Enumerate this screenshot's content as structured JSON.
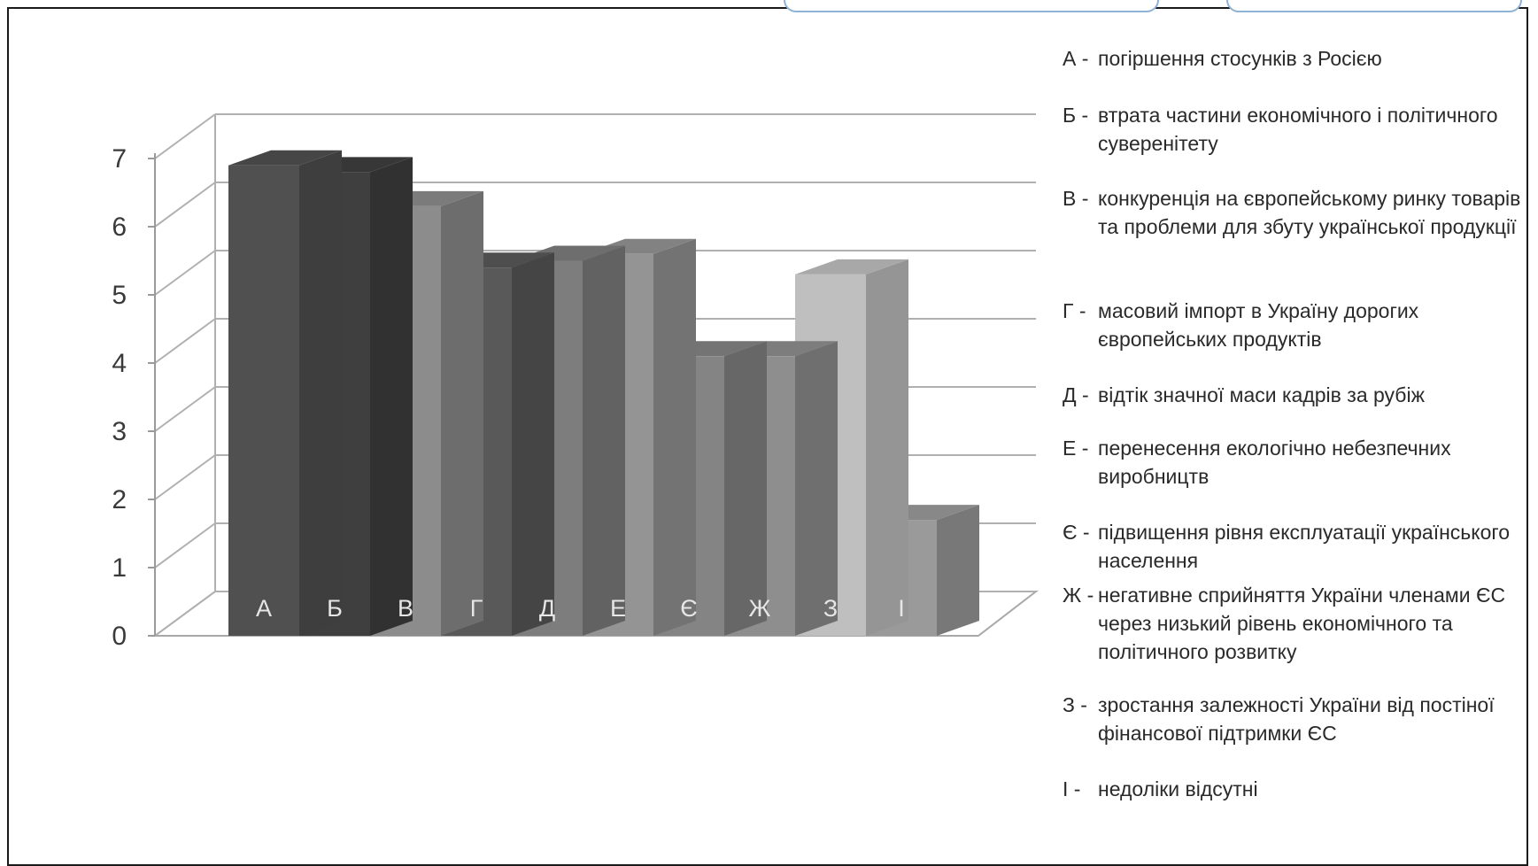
{
  "chart_data": {
    "type": "bar",
    "categories": [
      "А",
      "Б",
      "В",
      "Г",
      "Д",
      "Е",
      "Є",
      "Ж",
      "З",
      "І"
    ],
    "values": [
      6.9,
      6.8,
      6.3,
      5.4,
      5.5,
      5.6,
      4.1,
      4.1,
      5.3,
      1.7
    ],
    "colors": [
      "#505050",
      "#3f3f3f",
      "#8c8c8c",
      "#595959",
      "#7d7d7d",
      "#949494",
      "#848484",
      "#8e8e8e",
      "#bfbfbf",
      "#9a9a9a"
    ],
    "ylim": [
      0,
      7
    ],
    "yticks": [
      "0",
      "1",
      "2",
      "3",
      "4",
      "5",
      "6",
      "7"
    ],
    "title": "",
    "xlabel": "",
    "ylabel": "",
    "grid": true,
    "legend_placement": "right"
  },
  "legend": [
    {
      "key": "А -",
      "text": "погіршення стосунків з Росією"
    },
    {
      "key": "Б -",
      "text": "втрата частини економічного і політичного суверенітету"
    },
    {
      "key": "В -",
      "text": "конкуренція на європейському ринку товарів та проблеми для збуту української продукції"
    },
    {
      "key": "Г -",
      "text": "масовий імпорт в Україну дорогих європейських продуктів"
    },
    {
      "key": "Д -",
      "text": "відтік значної маси кадрів за рубіж"
    },
    {
      "key": "Е -",
      "text": "перенесення екологічно небезпечних виробництв"
    },
    {
      "key": "Є -",
      "text": "підвищення рівня експлуатації українського населення"
    },
    {
      "key": "Ж -",
      "text": "негативне сприйняття України членами ЄС через низький рівень економічного та політичного розвитку"
    },
    {
      "key": "З -",
      "text": "зростання залежності України від постіної фінансової підтримки ЄС"
    },
    {
      "key": "І -",
      "text": "недоліки відсутні"
    }
  ]
}
